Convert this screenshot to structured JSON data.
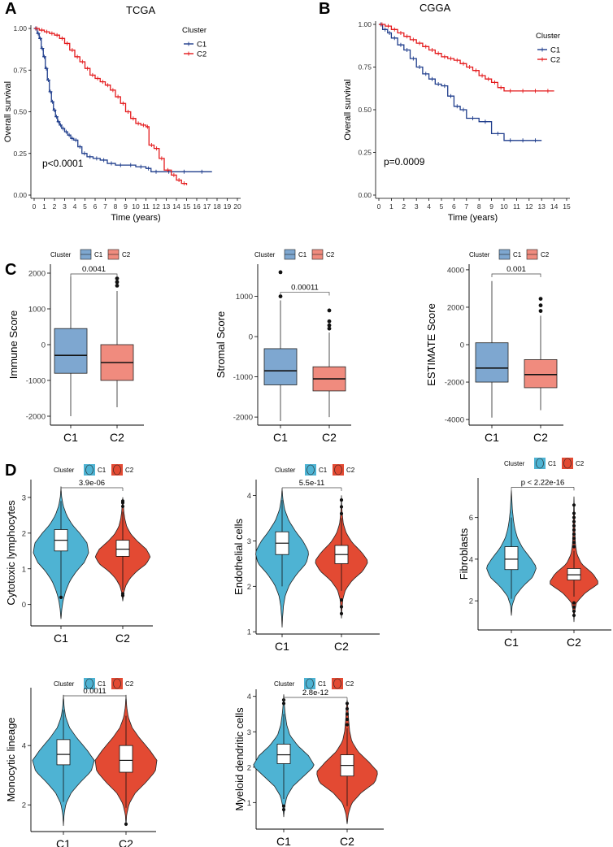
{
  "panel_labels": [
    "A",
    "B",
    "C",
    "D"
  ],
  "chart_data": [
    {
      "id": "A",
      "type": "line",
      "subtype": "kaplan-meier",
      "title": "TCGA",
      "xlabel": "Time (years)",
      "ylabel": "Overall survival",
      "xlim": [
        0,
        20
      ],
      "ylim": [
        0,
        1
      ],
      "xticks": [
        "0",
        "1",
        "2",
        "3",
        "4",
        "5",
        "6",
        "7",
        "8",
        "9",
        "10",
        "11",
        "12",
        "13",
        "14",
        "15",
        "16",
        "17",
        "18",
        "19",
        "20"
      ],
      "yticks": [
        "0.00",
        "0.25",
        "0.50",
        "0.75",
        "1.00"
      ],
      "legend_title": "Cluster",
      "legend": [
        "C1",
        "C2"
      ],
      "annotation": "p<0.0001",
      "series": [
        {
          "name": "C1",
          "color": "#1f3d8c",
          "x": [
            0,
            0.3,
            0.5,
            0.7,
            0.9,
            1.1,
            1.3,
            1.5,
            1.7,
            1.9,
            2.1,
            2.3,
            2.5,
            2.7,
            3.0,
            3.3,
            3.6,
            3.9,
            4.3,
            4.7,
            5.2,
            5.8,
            6.5,
            7.2,
            8.0,
            9.0,
            10.0,
            11.0,
            11.5,
            12.5,
            14.0,
            15.5,
            17.5
          ],
          "y": [
            1.0,
            0.97,
            0.94,
            0.88,
            0.83,
            0.76,
            0.69,
            0.62,
            0.56,
            0.51,
            0.47,
            0.44,
            0.42,
            0.4,
            0.38,
            0.36,
            0.34,
            0.33,
            0.29,
            0.25,
            0.23,
            0.22,
            0.21,
            0.19,
            0.18,
            0.18,
            0.17,
            0.16,
            0.14,
            0.14,
            0.14,
            0.14,
            0.14
          ]
        },
        {
          "name": "C2",
          "color": "#e41a1c",
          "x": [
            0,
            0.5,
            1.0,
            1.5,
            2.0,
            2.5,
            3.0,
            3.5,
            4.0,
            4.5,
            5.0,
            5.5,
            6.0,
            6.5,
            7.0,
            7.5,
            8.0,
            8.5,
            9.0,
            9.5,
            10.0,
            10.5,
            11.0,
            11.3,
            11.8,
            12.3,
            12.8,
            13.5,
            14.0,
            14.5,
            15.0
          ],
          "y": [
            1.0,
            0.99,
            0.98,
            0.97,
            0.96,
            0.94,
            0.91,
            0.87,
            0.83,
            0.8,
            0.76,
            0.72,
            0.7,
            0.68,
            0.66,
            0.63,
            0.59,
            0.55,
            0.5,
            0.46,
            0.43,
            0.42,
            0.41,
            0.3,
            0.28,
            0.22,
            0.15,
            0.12,
            0.09,
            0.07,
            0.06
          ]
        }
      ]
    },
    {
      "id": "B",
      "type": "line",
      "subtype": "kaplan-meier",
      "title": "CGGA",
      "xlabel": "Time (years)",
      "ylabel": "Overall survival",
      "xlim": [
        0,
        15
      ],
      "ylim": [
        0,
        1
      ],
      "xticks": [
        "0",
        "1",
        "2",
        "3",
        "4",
        "5",
        "6",
        "7",
        "8",
        "9",
        "10",
        "11",
        "12",
        "13",
        "14",
        "15"
      ],
      "yticks": [
        "0.00",
        "0.25",
        "0.50",
        "0.75",
        "1.00"
      ],
      "legend_title": "Cluster",
      "legend": [
        "C1",
        "C2"
      ],
      "annotation": "p=0.0009",
      "series": [
        {
          "name": "C1",
          "color": "#1f3d8c",
          "x": [
            0,
            0.3,
            0.7,
            1.0,
            1.5,
            2.0,
            2.5,
            3.0,
            3.5,
            4.0,
            4.5,
            5.0,
            5.5,
            6.0,
            6.5,
            7.0,
            8.0,
            9.0,
            10.0,
            11.0,
            12.0,
            13.0
          ],
          "y": [
            1.0,
            0.97,
            0.95,
            0.92,
            0.88,
            0.85,
            0.8,
            0.75,
            0.71,
            0.68,
            0.65,
            0.64,
            0.58,
            0.52,
            0.5,
            0.45,
            0.43,
            0.36,
            0.32,
            0.32,
            0.32,
            0.32
          ]
        },
        {
          "name": "C2",
          "color": "#e41a1c",
          "x": [
            0,
            0.5,
            1.0,
            1.5,
            2.0,
            2.5,
            3.0,
            3.5,
            4.0,
            4.5,
            5.0,
            5.5,
            6.0,
            6.5,
            7.0,
            7.5,
            8.0,
            8.5,
            9.0,
            9.5,
            10.0,
            11.0,
            12.0,
            13.0,
            14.0
          ],
          "y": [
            1.0,
            0.99,
            0.97,
            0.95,
            0.93,
            0.91,
            0.89,
            0.87,
            0.85,
            0.83,
            0.81,
            0.8,
            0.79,
            0.77,
            0.75,
            0.73,
            0.7,
            0.68,
            0.66,
            0.63,
            0.61,
            0.61,
            0.61,
            0.61,
            0.61
          ]
        }
      ]
    },
    {
      "id": "C1",
      "type": "box",
      "ylabel": "Immune Score",
      "categories": [
        "C1",
        "C2"
      ],
      "yticks": [
        "-2000",
        "-1000",
        "0",
        "1000",
        "2000"
      ],
      "ylim": [
        -2250,
        2250
      ],
      "legend_title": "Cluster",
      "legend": [
        "C1",
        "C2"
      ],
      "colors": [
        "#7ea7d0",
        "#f08b7e"
      ],
      "pvalue": "0.0041",
      "boxes": [
        {
          "min": -2000,
          "q1": -800,
          "median": -300,
          "q3": 450,
          "max": 1900,
          "outliers": []
        },
        {
          "min": -1750,
          "q1": -1000,
          "median": -500,
          "q3": 0,
          "max": 1500,
          "outliers": [
            1650,
            1750,
            1850
          ]
        }
      ]
    },
    {
      "id": "C2",
      "type": "box",
      "ylabel": "Stromal Score",
      "categories": [
        "C1",
        "C2"
      ],
      "yticks": [
        "-2000",
        "-1000",
        "0",
        "1000"
      ],
      "ylim": [
        -2200,
        1800
      ],
      "legend_title": "Cluster",
      "legend": [
        "C1",
        "C2"
      ],
      "colors": [
        "#7ea7d0",
        "#f08b7e"
      ],
      "pvalue": "0.00011",
      "boxes": [
        {
          "min": -2100,
          "q1": -1200,
          "median": -850,
          "q3": -300,
          "max": 900,
          "outliers": [
            1000,
            1600
          ]
        },
        {
          "min": -2000,
          "q1": -1350,
          "median": -1050,
          "q3": -750,
          "max": 100,
          "outliers": [
            200,
            280,
            380,
            650
          ]
        }
      ]
    },
    {
      "id": "C3",
      "type": "box",
      "ylabel": "ESTIMATE Score",
      "categories": [
        "C1",
        "C2"
      ],
      "yticks": [
        "-4000",
        "-2000",
        "0",
        "2000",
        "4000"
      ],
      "ylim": [
        -4300,
        4300
      ],
      "legend_title": "Cluster",
      "legend": [
        "C1",
        "C2"
      ],
      "colors": [
        "#7ea7d0",
        "#f08b7e"
      ],
      "pvalue": "0.001",
      "boxes": [
        {
          "min": -3900,
          "q1": -2000,
          "median": -1250,
          "q3": 100,
          "max": 3400,
          "outliers": []
        },
        {
          "min": -3500,
          "q1": -2300,
          "median": -1600,
          "q3": -800,
          "max": 1550,
          "outliers": [
            1800,
            2100,
            2450
          ]
        }
      ]
    },
    {
      "id": "D1",
      "type": "violin",
      "ylabel": "Cytotoxic lymphocytes",
      "categories": [
        "C1",
        "C2"
      ],
      "yticks": [
        "0",
        "1",
        "2",
        "3"
      ],
      "ylim": [
        -0.6,
        3.5
      ],
      "legend_title": "Cluster",
      "legend": [
        "C1",
        "C2"
      ],
      "colors": [
        "#4eb3d3",
        "#e34a33"
      ],
      "pvalue": "3.9e-06",
      "violins": [
        {
          "min": -0.4,
          "max": 3.3,
          "q1": 1.5,
          "median": 1.8,
          "q3": 2.1,
          "wlo": 0.2,
          "whi": 2.9,
          "outliers": [
            0.2
          ],
          "density": [
            0.03,
            0.08,
            0.18,
            0.32,
            0.55,
            0.85,
            1.0,
            0.95,
            0.7,
            0.4,
            0.2,
            0.08,
            0.02
          ]
        },
        {
          "min": 0.1,
          "max": 3.0,
          "q1": 1.35,
          "median": 1.55,
          "q3": 1.8,
          "wlo": 0.4,
          "whi": 2.6,
          "outliers": [
            0.25,
            0.3,
            2.75,
            2.85,
            2.9
          ],
          "density": [
            0.03,
            0.1,
            0.25,
            0.5,
            0.85,
            1.0,
            0.85,
            0.55,
            0.3,
            0.15,
            0.08,
            0.04,
            0.02
          ]
        }
      ]
    },
    {
      "id": "D2",
      "type": "violin",
      "ylabel": "Endothelial cells",
      "categories": [
        "C1",
        "C2"
      ],
      "yticks": [
        "1",
        "2",
        "3",
        "4"
      ],
      "ylim": [
        0.95,
        4.35
      ],
      "legend_title": "Cluster",
      "legend": [
        "C1",
        "C2"
      ],
      "colors": [
        "#4eb3d3",
        "#e34a33"
      ],
      "pvalue": "5.5e-11",
      "violins": [
        {
          "min": 1.1,
          "max": 4.15,
          "q1": 2.7,
          "median": 2.95,
          "q3": 3.2,
          "wlo": 2.0,
          "whi": 3.9,
          "outliers": [],
          "density": [
            0.02,
            0.05,
            0.12,
            0.28,
            0.55,
            0.9,
            1.0,
            0.8,
            0.5,
            0.25,
            0.1,
            0.03
          ]
        },
        {
          "min": 1.3,
          "max": 4.0,
          "q1": 2.5,
          "median": 2.7,
          "q3": 2.9,
          "wlo": 1.9,
          "whi": 3.5,
          "outliers": [
            1.4,
            1.55,
            1.7,
            3.6,
            3.75,
            3.9
          ],
          "density": [
            0.02,
            0.05,
            0.15,
            0.4,
            0.8,
            1.0,
            0.75,
            0.4,
            0.18,
            0.07,
            0.03,
            0.01
          ]
        }
      ]
    },
    {
      "id": "D3",
      "type": "violin",
      "ylabel": "Fibroblasts",
      "categories": [
        "C1",
        "C2"
      ],
      "yticks": [
        "2",
        "4",
        "6"
      ],
      "ylim": [
        0.6,
        7.9
      ],
      "legend_title": "Cluster",
      "legend": [
        "C1",
        "C2"
      ],
      "colors": [
        "#4eb3d3",
        "#e34a33"
      ],
      "pvalue": "p < 2.22e-16",
      "violins": [
        {
          "min": 1.3,
          "max": 7.3,
          "q1": 3.5,
          "median": 4.0,
          "q3": 4.6,
          "wlo": 2.1,
          "whi": 6.0,
          "outliers": [],
          "density": [
            0.03,
            0.15,
            0.45,
            0.85,
            1.0,
            0.75,
            0.45,
            0.25,
            0.14,
            0.08,
            0.04,
            0.02
          ]
        },
        {
          "min": 1.0,
          "max": 7.0,
          "q1": 3.0,
          "median": 3.25,
          "q3": 3.55,
          "wlo": 2.2,
          "whi": 4.4,
          "outliers": [
            1.3,
            1.5,
            1.7,
            1.9,
            4.6,
            4.8,
            5.0,
            5.2,
            5.4,
            5.6,
            5.8,
            6.0,
            6.2,
            6.6
          ],
          "density": [
            0.02,
            0.1,
            0.45,
            1.0,
            0.75,
            0.3,
            0.12,
            0.06,
            0.04,
            0.03,
            0.02,
            0.01
          ]
        }
      ]
    },
    {
      "id": "D4",
      "type": "violin",
      "ylabel": "Monocytic lineage",
      "categories": [
        "C1",
        "C2"
      ],
      "yticks": [
        "2",
        "4"
      ],
      "ylim": [
        1.1,
        5.95
      ],
      "legend_title": "Cluster",
      "legend": [
        "C1",
        "C2"
      ],
      "colors": [
        "#4eb3d3",
        "#e34a33"
      ],
      "pvalue": "0.0011",
      "violins": [
        {
          "min": 1.3,
          "max": 5.7,
          "q1": 3.35,
          "median": 3.7,
          "q3": 4.2,
          "wlo": 2.1,
          "whi": 5.2,
          "outliers": [],
          "density": [
            0.02,
            0.08,
            0.25,
            0.55,
            0.9,
            1.0,
            0.75,
            0.45,
            0.2,
            0.07,
            0.02
          ]
        },
        {
          "min": 1.3,
          "max": 5.7,
          "q1": 3.1,
          "median": 3.5,
          "q3": 4.0,
          "wlo": 1.9,
          "whi": 5.0,
          "outliers": [
            1.35
          ],
          "density": [
            0.02,
            0.1,
            0.3,
            0.65,
            0.95,
            1.0,
            0.75,
            0.45,
            0.2,
            0.07,
            0.02
          ]
        }
      ]
    },
    {
      "id": "D5",
      "type": "violin",
      "ylabel": "Myeloid dendritic cells",
      "categories": [
        "C1",
        "C2"
      ],
      "yticks": [
        "1",
        "2",
        "3",
        "4"
      ],
      "ylim": [
        0.25,
        4.2
      ],
      "legend_title": "Cluster",
      "legend": [
        "C1",
        "C2"
      ],
      "colors": [
        "#4eb3d3",
        "#e34a33"
      ],
      "pvalue": "2.8e-12",
      "violins": [
        {
          "min": 0.6,
          "max": 4.05,
          "q1": 2.1,
          "median": 2.35,
          "q3": 2.65,
          "wlo": 1.1,
          "whi": 3.5,
          "outliers": [
            0.8,
            0.9,
            3.8,
            3.9
          ],
          "density": [
            0.03,
            0.1,
            0.3,
            0.65,
            1.0,
            0.8,
            0.45,
            0.2,
            0.1,
            0.05,
            0.02
          ]
        },
        {
          "min": 0.4,
          "max": 3.9,
          "q1": 1.75,
          "median": 2.05,
          "q3": 2.35,
          "wlo": 0.9,
          "whi": 3.1,
          "outliers": [
            3.2,
            3.35,
            3.5,
            3.65,
            3.8
          ],
          "density": [
            0.04,
            0.15,
            0.45,
            0.9,
            1.0,
            0.7,
            0.35,
            0.15,
            0.08,
            0.05,
            0.03
          ]
        }
      ]
    }
  ]
}
